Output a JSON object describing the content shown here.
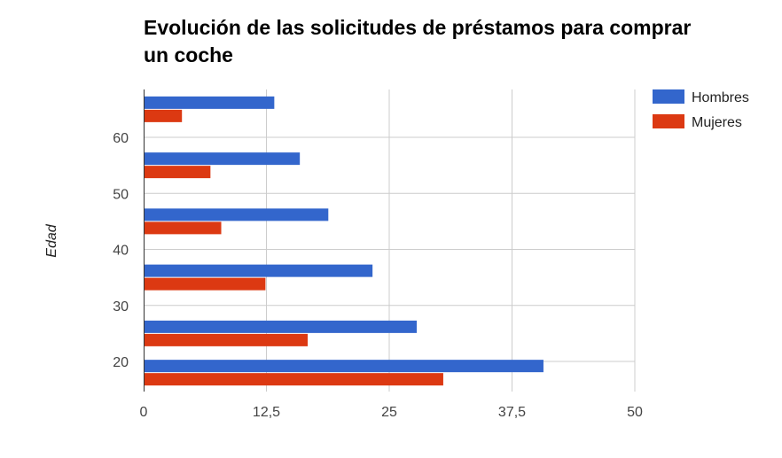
{
  "chart_data": {
    "type": "bar",
    "orientation": "horizontal",
    "title": "Evolución de las solicitudes de préstamos para comprar un coche",
    "xlabel": "",
    "ylabel": "Edad",
    "xlim": [
      0,
      50
    ],
    "x_ticks": [
      0,
      12.5,
      25,
      37.5,
      50
    ],
    "x_tick_labels": [
      "0",
      "12,5",
      "25",
      "37,5",
      "50"
    ],
    "y_ticks": [
      20,
      30,
      40,
      50,
      60
    ],
    "y_tick_labels": [
      "20",
      "30",
      "40",
      "50",
      "60"
    ],
    "categories": [
      18,
      25,
      35,
      45,
      55,
      65
    ],
    "series": [
      {
        "name": "Hombres",
        "color": "#3366cc",
        "values": [
          40.7,
          27.8,
          23.3,
          18.8,
          15.9,
          13.3
        ]
      },
      {
        "name": "Mujeres",
        "color": "#dc3912",
        "values": [
          30.5,
          16.7,
          12.4,
          7.9,
          6.8,
          3.9
        ]
      }
    ],
    "grid": true,
    "legend_position": "right"
  }
}
